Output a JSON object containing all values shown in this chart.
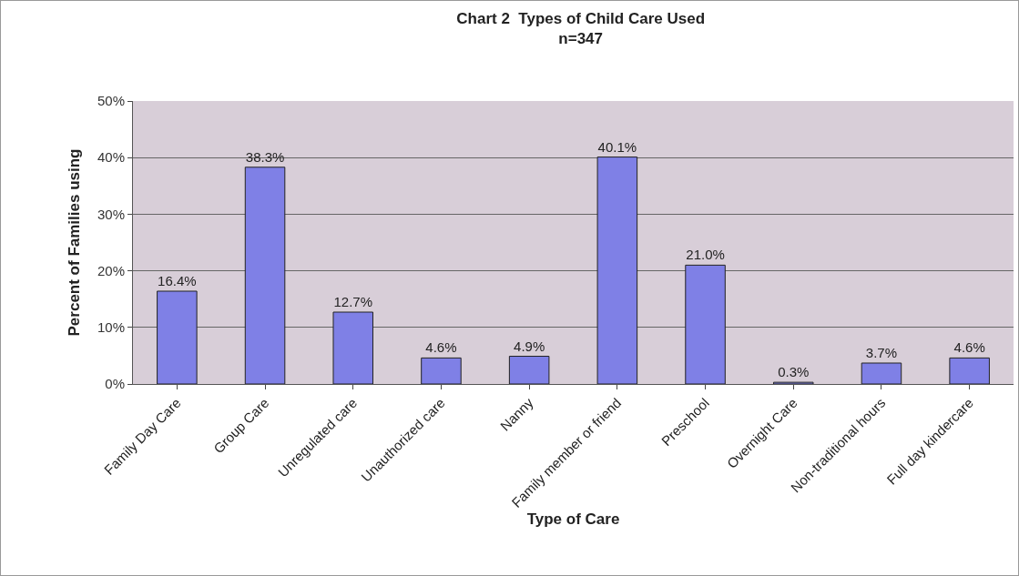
{
  "chart_data": {
    "type": "bar",
    "title": "Chart 2  Types of Child Care Used",
    "subtitle": "n=347",
    "xlabel": "Type of Care",
    "ylabel": "Percent of Families using",
    "categories": [
      "Family Day Care",
      "Group Care",
      "Unregulated care",
      "Unauthorized care",
      "Nanny",
      "Family member or friend",
      "Preschool",
      "Overnight Care",
      "Non-traditional hours",
      "Full day kindercare"
    ],
    "values": [
      16.4,
      38.3,
      12.7,
      4.6,
      4.9,
      40.1,
      21.0,
      0.3,
      3.7,
      4.6
    ],
    "value_labels": [
      "16.4%",
      "38.3%",
      "12.7%",
      "4.6%",
      "4.9%",
      "40.1%",
      "21.0%",
      "0.3%",
      "3.7%",
      "4.6%"
    ],
    "color": "#7f80e6",
    "ylim": [
      0,
      50
    ],
    "yticks": [
      {
        "value": 0,
        "label": "0%"
      },
      {
        "value": 10,
        "label": "10%"
      },
      {
        "value": 20,
        "label": "20%"
      },
      {
        "value": 30,
        "label": "30%"
      },
      {
        "value": 40,
        "label": "40%"
      },
      {
        "value": 50,
        "label": "50%"
      }
    ],
    "grid": "y",
    "legend": false
  }
}
